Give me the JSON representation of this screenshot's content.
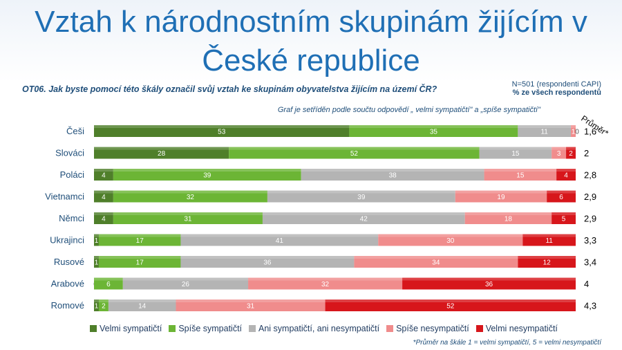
{
  "page": {
    "title_line1": "Vztah k národnostním skupinám žijícím v",
    "title_line2": "České republice",
    "question": "OT06. Jak byste pomocí této škály označil svůj vztah ke skupinám obyvatelstva žijícím na území ČR?",
    "sample_line1": "N=501 (respondenti CAPI)",
    "sample_line2": "% ze všech respondentů",
    "sort_note": "Graf je setříděn podle součtu odpovědí „ velmi sympatičtí\" a „spíše sympatičtí\"",
    "avg_header": "Průměr*",
    "footnote": "*Průměr na škále 1 = velmi sympatičtí, 5 = velmi nesympatičtí"
  },
  "chart_data": {
    "type": "bar",
    "orientation": "horizontal",
    "stacked": "percent",
    "categories": [
      "Češi",
      "Slováci",
      "Poláci",
      "Vietnamci",
      "Němci",
      "Ukrajinci",
      "Rusové",
      "Arabové",
      "Romové"
    ],
    "series": [
      {
        "name": "Velmi sympatičtí",
        "color": "#4f7f2a",
        "values": [
          53,
          28,
          4,
          4,
          4,
          1,
          1,
          0,
          1
        ]
      },
      {
        "name": "Spíše sympatičtí",
        "color": "#6cb535",
        "values": [
          35,
          52,
          39,
          32,
          31,
          17,
          17,
          6,
          2
        ]
      },
      {
        "name": "Ani sympatičtí, ani nesympatičtí",
        "color": "#b4b4b4",
        "values": [
          11,
          15,
          38,
          39,
          42,
          41,
          36,
          26,
          14
        ]
      },
      {
        "name": "Spíše nesympatičtí",
        "color": "#f08c8c",
        "values": [
          1,
          3,
          15,
          19,
          18,
          30,
          34,
          32,
          31
        ]
      },
      {
        "name": "Velmi nesympatičtí",
        "color": "#d7161b",
        "values": [
          0,
          2,
          4,
          6,
          5,
          11,
          12,
          36,
          52
        ]
      }
    ],
    "averages": [
      "1,6",
      "2",
      "2,8",
      "2,9",
      "2,9",
      "3,3",
      "3,4",
      "4",
      "4,3"
    ],
    "legend_position": "bottom",
    "grid": false
  }
}
